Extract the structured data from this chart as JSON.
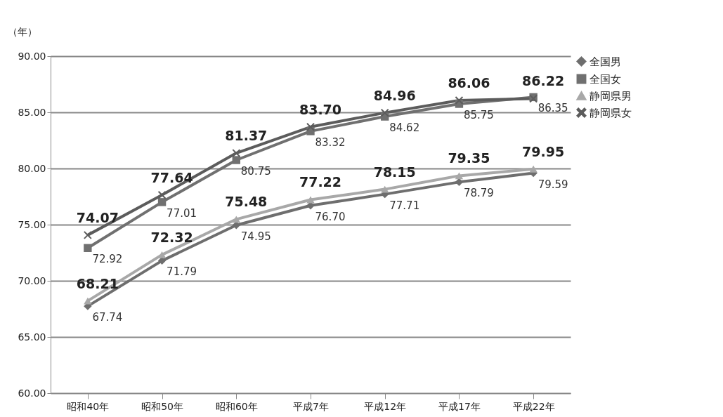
{
  "chart_data": {
    "type": "line",
    "ylabel": "（年）",
    "categories": [
      "昭和40年",
      "昭和50年",
      "昭和60年",
      "平成7年",
      "平成12年",
      "平成17年",
      "平成22年"
    ],
    "series": [
      {
        "name": "全国男",
        "color": "#6e6e6e",
        "marker": "diamond",
        "values": [
          67.74,
          71.79,
          74.95,
          76.7,
          77.71,
          78.79,
          79.59
        ],
        "value_labels": [
          "67.74",
          "71.79",
          "74.95",
          "76.70",
          "77.71",
          "78.79",
          "79.59"
        ]
      },
      {
        "name": "全国女",
        "color": "#707070",
        "marker": "square",
        "values": [
          72.92,
          77.01,
          80.75,
          83.32,
          84.62,
          85.75,
          86.35
        ],
        "value_labels": [
          "72.92",
          "77.01",
          "80.75",
          "83.32",
          "84.62",
          "85.75",
          "86.35"
        ]
      },
      {
        "name": "静岡県男",
        "color": "#a8a8a8",
        "marker": "triangle",
        "values": [
          68.21,
          72.32,
          75.48,
          77.22,
          78.15,
          79.35,
          79.95
        ],
        "value_labels": [
          "68.21",
          "72.32",
          "75.48",
          "77.22",
          "78.15",
          "79.35",
          "79.95"
        ]
      },
      {
        "name": "静岡県女",
        "color": "#5c5c5c",
        "marker": "cross",
        "values": [
          74.07,
          77.64,
          81.37,
          83.7,
          84.96,
          86.06,
          86.22
        ],
        "value_labels": [
          "74.07",
          "77.64",
          "81.37",
          "83.70",
          "84.96",
          "86.06",
          "86.22"
        ]
      }
    ],
    "ylim": [
      60,
      90
    ],
    "yticks": [
      {
        "value": 60,
        "label": "60.00"
      },
      {
        "value": 65,
        "label": "65.00"
      },
      {
        "value": 70,
        "label": "70.00"
      },
      {
        "value": 75,
        "label": "75.00"
      },
      {
        "value": 80,
        "label": "80.00"
      },
      {
        "value": 85,
        "label": "85.00"
      },
      {
        "value": 90,
        "label": "90.00"
      }
    ],
    "grid": "y",
    "legend": "right",
    "line_style": "solid"
  }
}
